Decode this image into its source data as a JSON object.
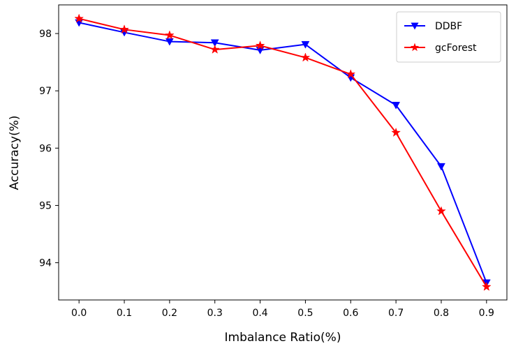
{
  "chart_data": {
    "type": "line",
    "title": "",
    "xlabel": "Imbalance Ratio(%)",
    "ylabel": "Accuracy(%)",
    "x": [
      0.0,
      0.1,
      0.2,
      0.3,
      0.4,
      0.5,
      0.6,
      0.7,
      0.8,
      0.9
    ],
    "x_tick_labels": [
      "0.0",
      "0.1",
      "0.2",
      "0.3",
      "0.4",
      "0.5",
      "0.6",
      "0.7",
      "0.8",
      "0.9"
    ],
    "y_ticks": [
      94,
      95,
      96,
      97,
      98
    ],
    "y_tick_labels": [
      "94",
      "95",
      "96",
      "97",
      "98"
    ],
    "xlim": [
      -0.045,
      0.945
    ],
    "ylim": [
      93.35,
      98.5
    ],
    "grid": false,
    "legend_position": "top-right",
    "series": [
      {
        "name": "DDBF",
        "color": "#0000ff",
        "marker": "triangle-down",
        "values": [
          98.19,
          98.02,
          97.86,
          97.84,
          97.71,
          97.81,
          97.23,
          96.75,
          95.68,
          93.65
        ]
      },
      {
        "name": "gcForest",
        "color": "#ff0000",
        "marker": "star",
        "values": [
          98.26,
          98.07,
          97.97,
          97.72,
          97.79,
          97.58,
          97.29,
          96.27,
          94.9,
          93.58
        ]
      }
    ]
  }
}
